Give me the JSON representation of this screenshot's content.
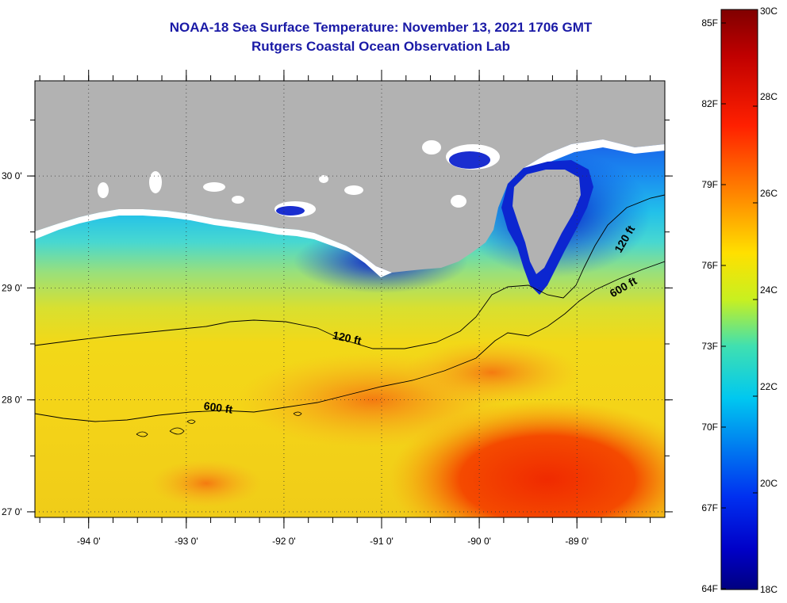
{
  "title": "NOAA-18 Sea Surface Temperature:  November 13, 2021 1706 GMT",
  "subtitle": "Rutgers Coastal Ocean Observation Lab",
  "colors": {
    "land": "#b2b2b2",
    "cloud": "#ffffff",
    "cold": "#0a1ed8",
    "warm": "#f02a00"
  },
  "chart_data": {
    "type": "heatmap",
    "x_ticks": [
      {
        "value": -94,
        "label": "-94 0'"
      },
      {
        "value": -93,
        "label": "-93 0'"
      },
      {
        "value": -92,
        "label": "-92 0'"
      },
      {
        "value": -91,
        "label": "-91 0'"
      },
      {
        "value": -90,
        "label": "-90 0'"
      },
      {
        "value": -89,
        "label": "-89 0'"
      }
    ],
    "y_ticks": [
      {
        "value": 30,
        "label": "30 0'"
      },
      {
        "value": 29,
        "label": "29 0'"
      },
      {
        "value": 28,
        "label": "28 0'"
      },
      {
        "value": 27,
        "label": "27 0'"
      }
    ],
    "xlim": [
      -94.55,
      -88.1
    ],
    "ylim": [
      26.95,
      30.85
    ],
    "contours": [
      {
        "label": "120 ft"
      },
      {
        "label": "120 ft"
      },
      {
        "label": "600 ft"
      },
      {
        "label": "600 ft"
      }
    ],
    "colorbar": {
      "celsius": [
        "30C",
        "28C",
        "26C",
        "24C",
        "22C",
        "20C",
        "18C"
      ],
      "fahrenheit": [
        "85F",
        "82F",
        "79F",
        "76F",
        "73F",
        "70F",
        "67F",
        "64F"
      ],
      "range_c": [
        18,
        30
      ]
    }
  }
}
